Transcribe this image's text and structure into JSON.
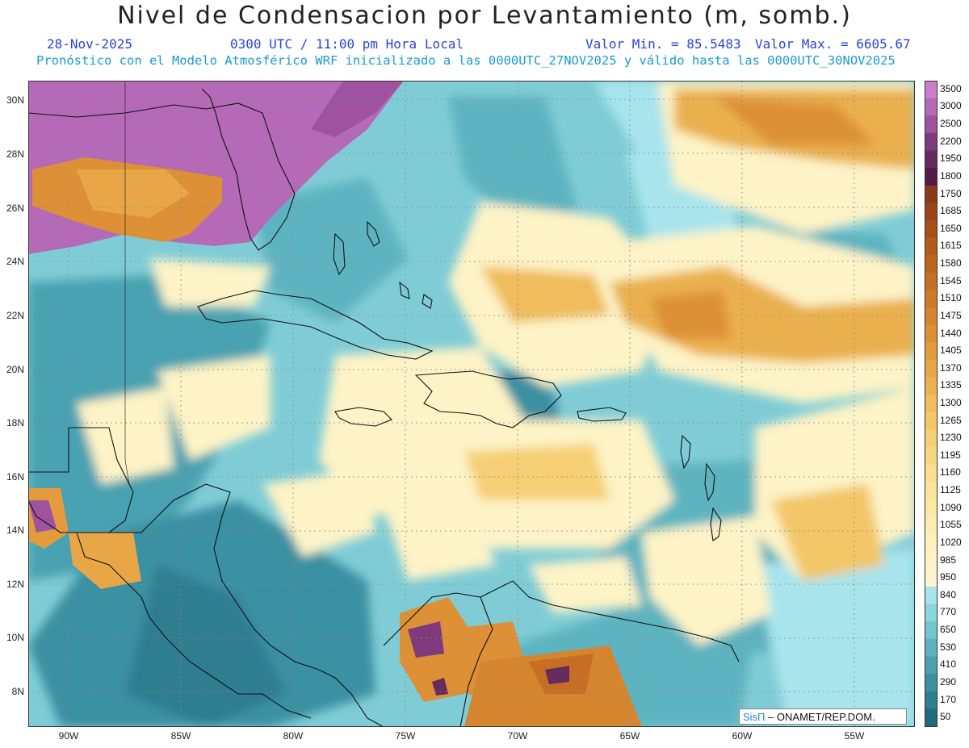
{
  "title": "Nivel de Condensacion por Levantamiento (m, somb.)",
  "date": "28-Nov-2025",
  "time": "0300 UTC / 11:00 pm Hora Local",
  "valmin": "Valor Min. = 85.5483",
  "valmax": "Valor Max. = 6605.67",
  "forecast": "Pronóstico con el Modelo Atmosférico WRF inicializado a las 0000UTC_27NOV2025 y válido hasta las  0000UTC_30NOV2025",
  "lat_labels": [
    "30N",
    "28N",
    "26N",
    "24N",
    "22N",
    "20N",
    "18N",
    "16N",
    "14N",
    "12N",
    "10N",
    "8N"
  ],
  "lon_labels": [
    "90W",
    "85W",
    "80W",
    "75W",
    "70W",
    "65W",
    "60W",
    "55W"
  ],
  "colorbar": {
    "labels": [
      "3500",
      "3000",
      "2500",
      "2200",
      "1950",
      "1800",
      "1750",
      "1685",
      "1650",
      "1615",
      "1580",
      "1545",
      "1510",
      "1475",
      "1440",
      "1405",
      "1370",
      "1335",
      "1300",
      "1265",
      "1230",
      "1195",
      "1160",
      "1125",
      "1090",
      "1055",
      "1020",
      "985",
      "950",
      "840",
      "770",
      "650",
      "530",
      "410",
      "290",
      "170",
      "50"
    ],
    "colors": [
      "#c97fcb",
      "#b46ab7",
      "#9e529f",
      "#7f3a7d",
      "#652a5e",
      "#521c45",
      "#8a3a1a",
      "#9a4418",
      "#a84e1a",
      "#b45a1c",
      "#bd641f",
      "#c66f24",
      "#ce7a29",
      "#d6852f",
      "#dd9036",
      "#e39b3e",
      "#e8a647",
      "#ecb151",
      "#f0bc5c",
      "#f3c668",
      "#f6cf74",
      "#f8d781",
      "#fadf8e",
      "#fbe59a",
      "#fce9a6",
      "#fdedb0",
      "#fdf0bb",
      "#fdf3c6",
      "#fdf5cf",
      "#a8e4ec",
      "#8cd5dd",
      "#73c5cf",
      "#5db4c0",
      "#4aa2b1",
      "#3a90a1",
      "#2d7e90",
      "#226b7e"
    ]
  },
  "credit_logo": "SisΠ",
  "credit_text": "– ONAMET/REP.DOM."
}
